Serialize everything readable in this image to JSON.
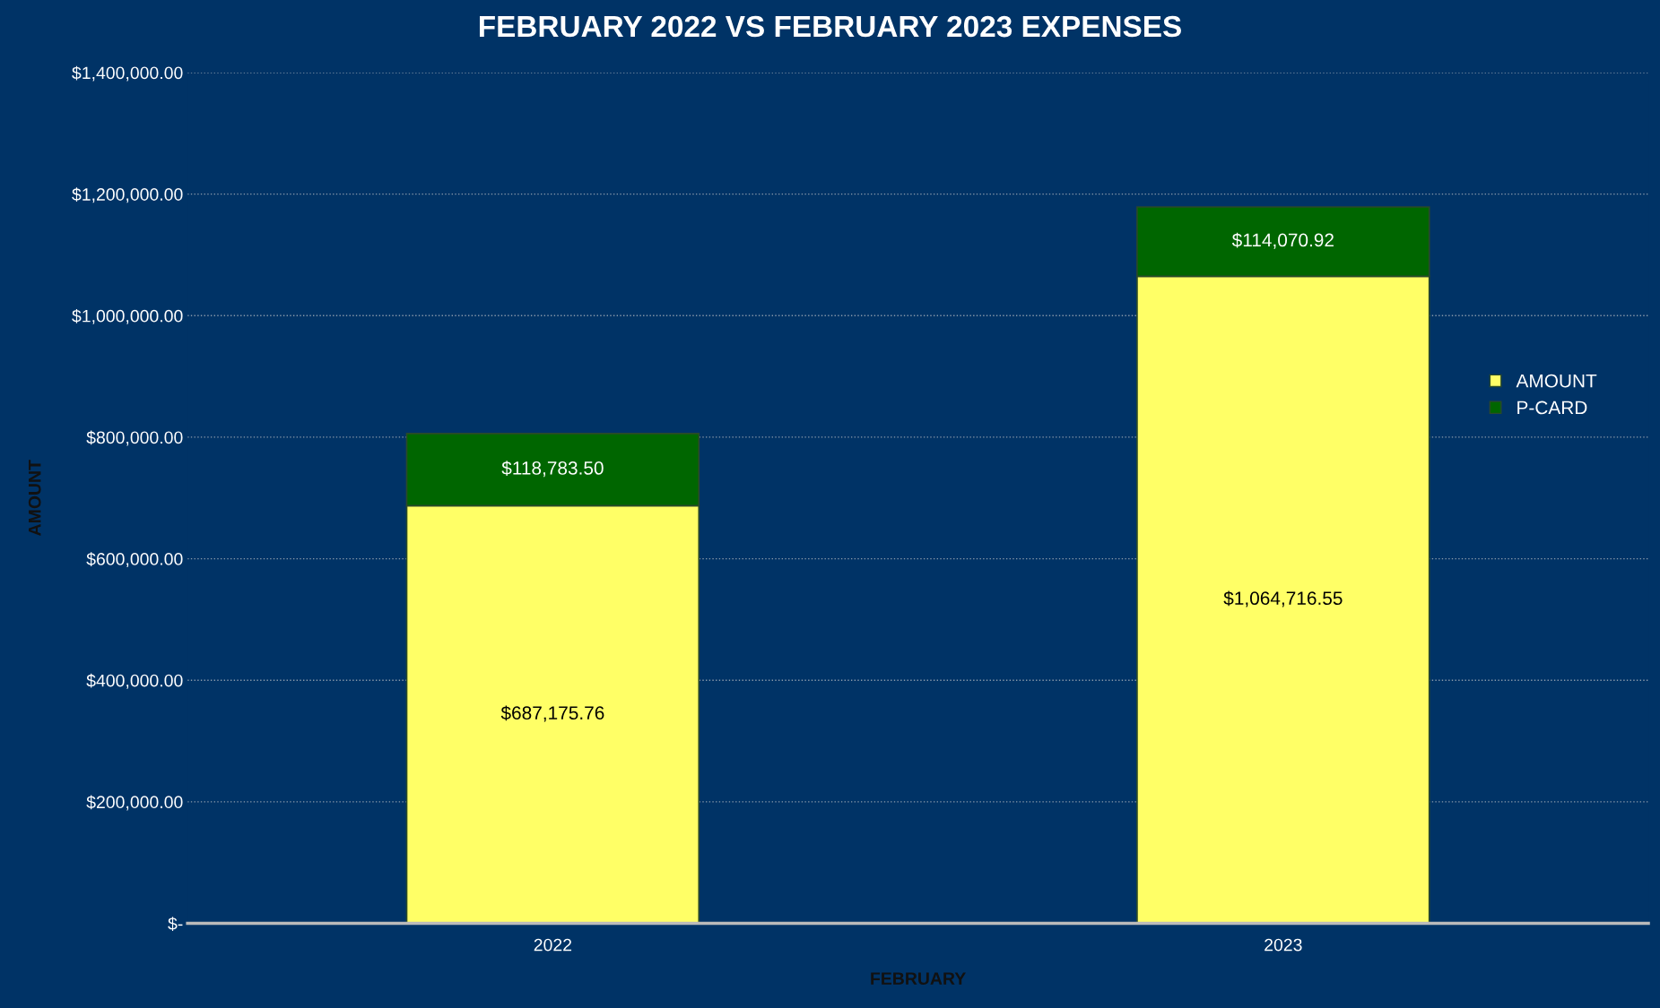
{
  "chart_data": {
    "type": "bar",
    "title": "FEBRUARY 2022 VS FEBRUARY 2023 EXPENSES",
    "xlabel": "FEBRUARY",
    "ylabel": "AMOUNT",
    "categories": [
      "2022",
      "2023"
    ],
    "stacked": true,
    "series": [
      {
        "name": "AMOUNT",
        "color": "#ffff66",
        "values": [
          687175.76,
          1064716.55
        ],
        "value_labels": [
          "$687,175.76",
          "$1,064,716.55"
        ]
      },
      {
        "name": "P-CARD",
        "color": "#006600",
        "values": [
          118783.5,
          114070.92
        ],
        "value_labels": [
          "$118,783.50",
          "$114,070.92"
        ]
      }
    ],
    "ylim": [
      0,
      1400000
    ],
    "yticks": [
      {
        "value": 0,
        "label": "$-"
      },
      {
        "value": 200000,
        "label": "$200,000.00"
      },
      {
        "value": 400000,
        "label": "$400,000.00"
      },
      {
        "value": 600000,
        "label": "$600,000.00"
      },
      {
        "value": 800000,
        "label": "$800,000.00"
      },
      {
        "value": 1000000,
        "label": "$1,000,000.00"
      },
      {
        "value": 1200000,
        "label": "$1,200,000.00"
      },
      {
        "value": 1400000,
        "label": "$1,400,000.00"
      }
    ],
    "grid": "y",
    "legend": "right"
  }
}
